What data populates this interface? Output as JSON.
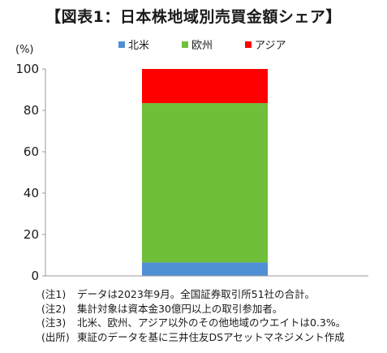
{
  "title": "【図表1：日本株地域別売買金額シェア】",
  "chart_data": {
    "type": "bar",
    "stacked": true,
    "title": "【図表1：日本株地域別売買金額シェア】",
    "ylabel": "(%)",
    "xlabel": "",
    "categories": [
      ""
    ],
    "ylim": [
      0,
      100
    ],
    "yticks": [
      0,
      20,
      40,
      60,
      80,
      100
    ],
    "grid": false,
    "legend_position": "top",
    "series": [
      {
        "name": "北米",
        "values": [
          6.5
        ],
        "color": "#4f8fd6"
      },
      {
        "name": "欧州",
        "values": [
          77.0
        ],
        "color": "#6fbf3a"
      },
      {
        "name": "アジア",
        "values": [
          16.5
        ],
        "color": "#ff0000"
      }
    ]
  },
  "notes": [
    {
      "tag": "(注1)",
      "text": "データは2023年9月。全国証券取引所51社の合計。"
    },
    {
      "tag": "(注2)",
      "text": "集計対象は資本金30億円以上の取引参加者。"
    },
    {
      "tag": "(注3)",
      "text": "北米、欧州、アジア以外のその他地域のウエイトは0.3%。"
    },
    {
      "tag": "(出所)",
      "text": "東証のデータを基に三井住友DSアセットマネジメント作成"
    }
  ]
}
